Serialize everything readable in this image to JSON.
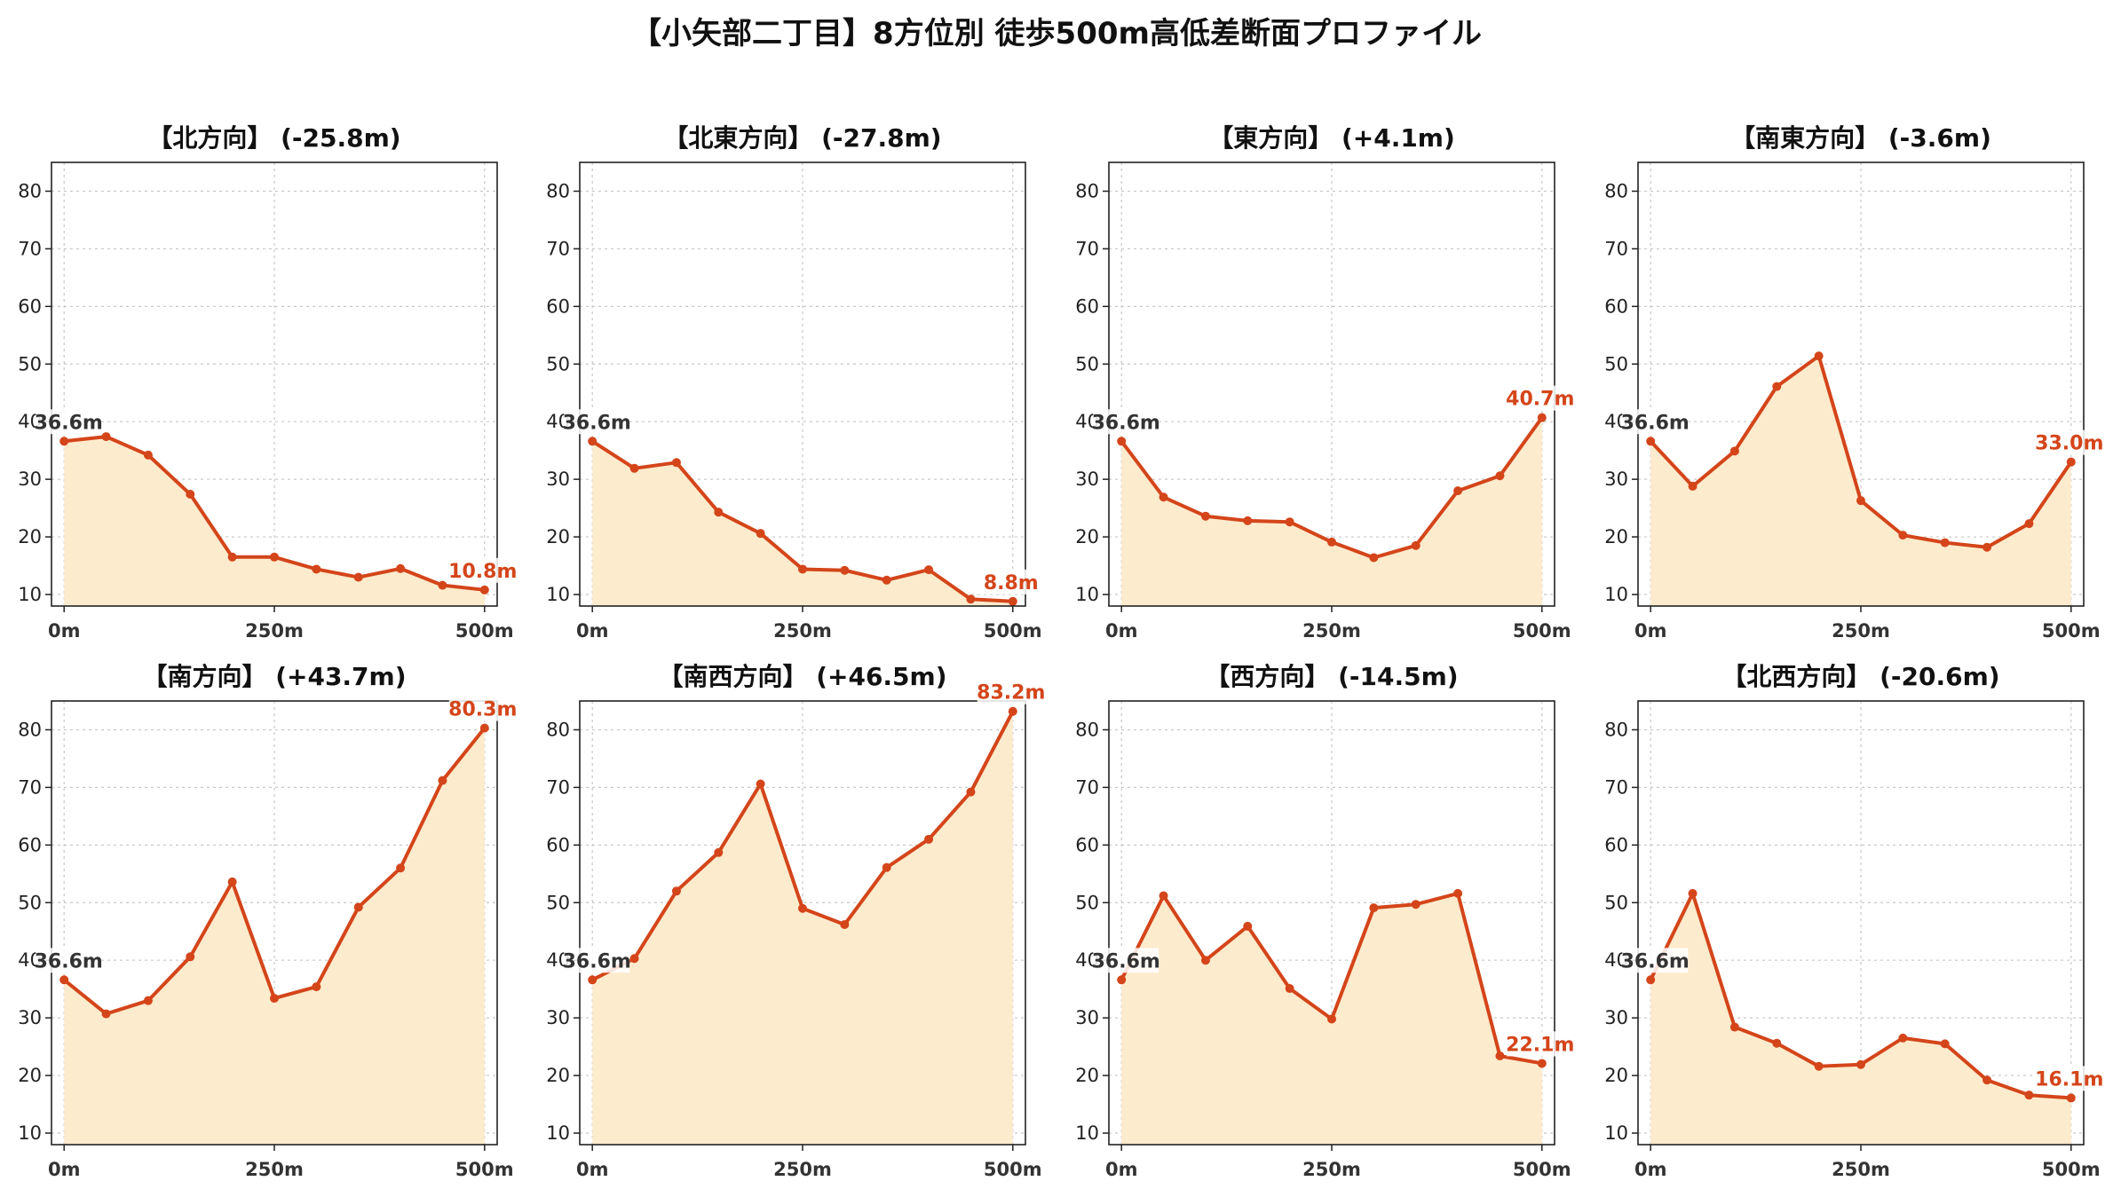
{
  "title": "【小矢部二丁目】8方位別 徒歩500m高低差断面プロファイル",
  "colors": {
    "line": "#d4451a",
    "fill": "#fdebcd",
    "grid": "#c8c8c8",
    "axis": "#222222",
    "start_label": "#333333"
  },
  "chart_data": [
    {
      "type": "area",
      "title": "【北方向】 (-25.8m)",
      "x": [
        0,
        50,
        100,
        150,
        200,
        250,
        300,
        350,
        400,
        450,
        500
      ],
      "y": [
        36.6,
        37.4,
        34.2,
        27.4,
        16.5,
        16.5,
        14.4,
        13.0,
        14.5,
        11.6,
        10.8
      ],
      "xticks": [
        "0m",
        "250m",
        "500m"
      ],
      "yticks": [
        10,
        20,
        30,
        40,
        50,
        60,
        70,
        80
      ],
      "ylim": [
        8,
        85
      ],
      "start_label": "36.6m",
      "end_label": "10.8m",
      "grid": true
    },
    {
      "type": "area",
      "title": "【北東方向】 (-27.8m)",
      "x": [
        0,
        50,
        100,
        150,
        200,
        250,
        300,
        350,
        400,
        450,
        500
      ],
      "y": [
        36.6,
        31.9,
        32.9,
        24.3,
        20.6,
        14.4,
        14.2,
        12.5,
        14.3,
        9.2,
        8.8
      ],
      "xticks": [
        "0m",
        "250m",
        "500m"
      ],
      "yticks": [
        10,
        20,
        30,
        40,
        50,
        60,
        70,
        80
      ],
      "ylim": [
        8,
        85
      ],
      "start_label": "36.6m",
      "end_label": "8.8m",
      "grid": true
    },
    {
      "type": "area",
      "title": "【東方向】 (+4.1m)",
      "x": [
        0,
        50,
        100,
        150,
        200,
        250,
        300,
        350,
        400,
        450,
        500
      ],
      "y": [
        36.6,
        26.9,
        23.6,
        22.8,
        22.6,
        19.1,
        16.4,
        18.5,
        28.0,
        30.6,
        40.7
      ],
      "xticks": [
        "0m",
        "250m",
        "500m"
      ],
      "yticks": [
        10,
        20,
        30,
        40,
        50,
        60,
        70,
        80
      ],
      "ylim": [
        8,
        85
      ],
      "start_label": "36.6m",
      "end_label": "40.7m",
      "grid": true
    },
    {
      "type": "area",
      "title": "【南東方向】 (-3.6m)",
      "x": [
        0,
        50,
        100,
        150,
        200,
        250,
        300,
        350,
        400,
        450,
        500
      ],
      "y": [
        36.6,
        28.8,
        34.9,
        46.1,
        51.4,
        26.3,
        20.3,
        19.0,
        18.2,
        22.3,
        33.0
      ],
      "xticks": [
        "0m",
        "250m",
        "500m"
      ],
      "yticks": [
        10,
        20,
        30,
        40,
        50,
        60,
        70,
        80
      ],
      "ylim": [
        8,
        85
      ],
      "start_label": "36.6m",
      "end_label": "33.0m",
      "grid": true
    },
    {
      "type": "area",
      "title": "【南方向】 (+43.7m)",
      "x": [
        0,
        50,
        100,
        150,
        200,
        250,
        300,
        350,
        400,
        450,
        500
      ],
      "y": [
        36.6,
        30.7,
        33.0,
        40.6,
        53.6,
        33.4,
        35.4,
        49.2,
        56.0,
        71.2,
        80.3
      ],
      "xticks": [
        "0m",
        "250m",
        "500m"
      ],
      "yticks": [
        10,
        20,
        30,
        40,
        50,
        60,
        70,
        80
      ],
      "ylim": [
        8,
        85
      ],
      "start_label": "36.6m",
      "end_label": "80.3m",
      "grid": true
    },
    {
      "type": "area",
      "title": "【南西方向】 (+46.5m)",
      "x": [
        0,
        50,
        100,
        150,
        200,
        250,
        300,
        350,
        400,
        450,
        500
      ],
      "y": [
        36.6,
        40.3,
        52.0,
        58.7,
        70.6,
        49.0,
        46.2,
        56.1,
        61.0,
        69.2,
        83.2
      ],
      "xticks": [
        "0m",
        "250m",
        "500m"
      ],
      "yticks": [
        10,
        20,
        30,
        40,
        50,
        60,
        70,
        80
      ],
      "ylim": [
        8,
        85
      ],
      "start_label": "36.6m",
      "end_label": "83.2m",
      "grid": true
    },
    {
      "type": "area",
      "title": "【西方向】 (-14.5m)",
      "x": [
        0,
        50,
        100,
        150,
        200,
        250,
        300,
        350,
        400,
        450,
        500
      ],
      "y": [
        36.6,
        51.2,
        40.0,
        45.9,
        35.1,
        29.8,
        49.1,
        49.7,
        51.6,
        23.4,
        22.1
      ],
      "xticks": [
        "0m",
        "250m",
        "500m"
      ],
      "yticks": [
        10,
        20,
        30,
        40,
        50,
        60,
        70,
        80
      ],
      "ylim": [
        8,
        85
      ],
      "start_label": "36.6m",
      "end_label": "22.1m",
      "grid": true
    },
    {
      "type": "area",
      "title": "【北西方向】 (-20.6m)",
      "x": [
        0,
        50,
        100,
        150,
        200,
        250,
        300,
        350,
        400,
        450,
        500
      ],
      "y": [
        36.6,
        51.6,
        28.4,
        25.6,
        21.6,
        21.9,
        26.5,
        25.5,
        19.2,
        16.6,
        16.1
      ],
      "xticks": [
        "0m",
        "250m",
        "500m"
      ],
      "yticks": [
        10,
        20,
        30,
        40,
        50,
        60,
        70,
        80
      ],
      "ylim": [
        8,
        85
      ],
      "start_label": "36.6m",
      "end_label": "16.1m",
      "grid": true
    }
  ]
}
